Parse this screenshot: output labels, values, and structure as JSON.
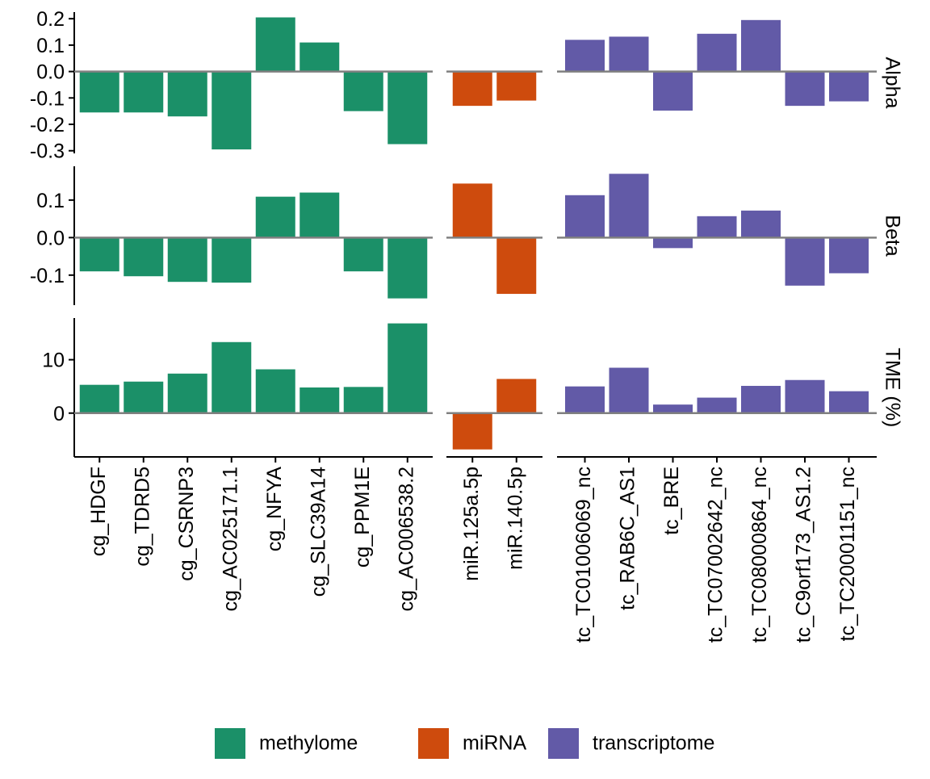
{
  "chart_data": {
    "type": "bar",
    "facet_rows": [
      "Alpha",
      "Beta",
      "TME (%)"
    ],
    "groups": [
      {
        "name": "methylome",
        "categories": [
          "cg_HDGF",
          "cg_TDRD5",
          "cg_CSRNP3",
          "cg_AC025171.1",
          "cg_NFYA",
          "cg_SLC39A14",
          "cg_PPM1E",
          "cg_AC006538.2"
        ]
      },
      {
        "name": "miRNA",
        "categories": [
          "miR.125a.5p",
          "miR.140.5p"
        ]
      },
      {
        "name": "transcriptome",
        "categories": [
          "tc_TC01006069_nc",
          "tc_RAB6C_AS1",
          "tc_BRE",
          "tc_TC07002642_nc",
          "tc_TC08000864_nc",
          "tc_C9orf173_AS1.2",
          "tc_TC20001151_nc"
        ]
      }
    ],
    "values": {
      "Alpha": {
        "methylome": [
          -0.155,
          -0.155,
          -0.17,
          -0.295,
          0.205,
          0.11,
          -0.15,
          -0.275
        ],
        "miRNA": [
          -0.13,
          -0.11
        ],
        "transcriptome": [
          0.12,
          0.132,
          -0.148,
          0.143,
          0.195,
          -0.13,
          -0.113
        ]
      },
      "Beta": {
        "methylome": [
          -0.09,
          -0.103,
          -0.118,
          -0.12,
          0.109,
          0.12,
          -0.09,
          -0.162
        ],
        "miRNA": [
          0.144,
          -0.15
        ],
        "transcriptome": [
          0.113,
          0.17,
          -0.028,
          0.057,
          0.072,
          -0.128,
          -0.095
        ]
      },
      "TME (%)": {
        "methylome": [
          5.3,
          5.9,
          7.4,
          13.3,
          8.2,
          4.8,
          4.9,
          16.8
        ],
        "miRNA": [
          -6.8,
          6.4
        ],
        "transcriptome": [
          5.0,
          8.5,
          1.6,
          2.9,
          5.1,
          6.2,
          4.1
        ]
      }
    },
    "y_axes": {
      "Alpha": {
        "ylim": [
          -0.31,
          0.225
        ],
        "ticks": [
          0.2,
          0.1,
          0.0,
          -0.1,
          -0.2,
          -0.3
        ],
        "tick_labels": [
          "0.2",
          "0.1",
          "0.0",
          "-0.1",
          "-0.2",
          "-0.3"
        ]
      },
      "Beta": {
        "ylim": [
          -0.18,
          0.19
        ],
        "ticks": [
          0.1,
          0.0,
          -0.1
        ],
        "tick_labels": [
          "0.1",
          "0.0",
          "-0.1"
        ]
      },
      "TME (%)": {
        "ylim": [
          -8.2,
          17.8
        ],
        "ticks": [
          10,
          0
        ],
        "tick_labels": [
          "10",
          "0"
        ]
      }
    },
    "colors": {
      "methylome": "#1B9068",
      "miRNA": "#CE4B0D",
      "transcriptome": "#625AA7",
      "zero_line": "#808080",
      "axis": "#000000"
    },
    "legend": {
      "placement": "bottom",
      "entries": [
        "methylome",
        "miRNA",
        "transcriptome"
      ]
    },
    "grid": false
  }
}
